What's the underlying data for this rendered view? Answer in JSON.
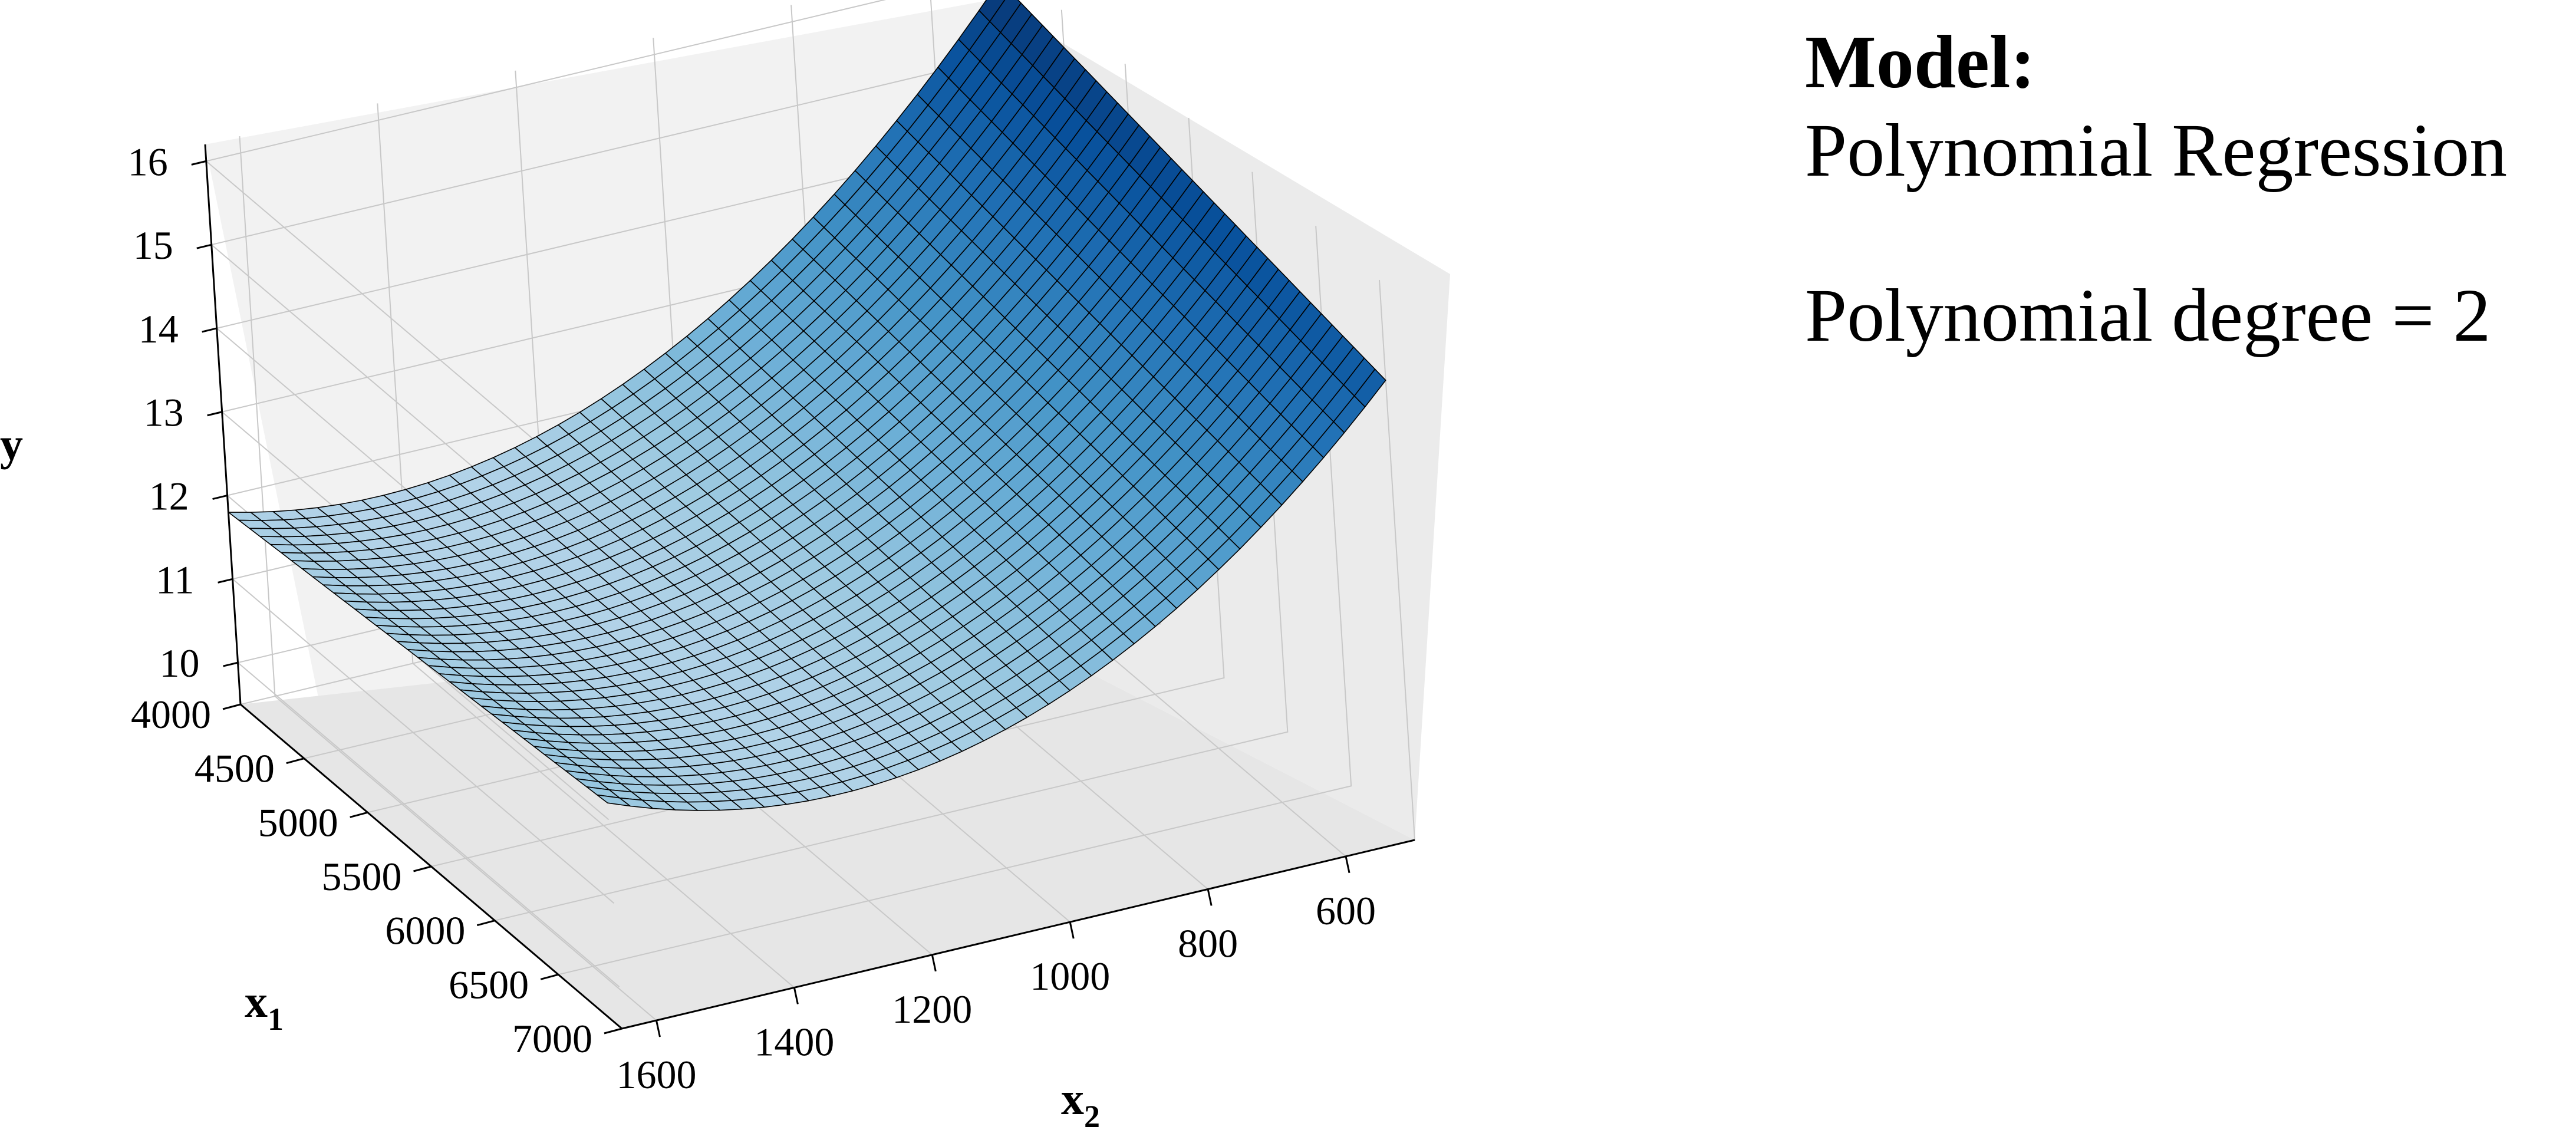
{
  "chart_data": {
    "type": "surface",
    "title": "",
    "xlabel": "x",
    "xlabel_subscript": "1",
    "x2label": "x",
    "x2label_subscript": "2",
    "ylabel": "y",
    "x1_range": [
      4000,
      7000
    ],
    "x2_range": [
      500,
      1650
    ],
    "y_range": [
      9.5,
      16.2
    ],
    "x1_ticks": [
      "4000",
      "4500",
      "5000",
      "5500",
      "6000",
      "6500",
      "7000"
    ],
    "x2_ticks": [
      "1600",
      "1400",
      "1200",
      "1000",
      "800",
      "600"
    ],
    "y_ticks": [
      "10",
      "11",
      "12",
      "13",
      "14",
      "15",
      "16"
    ],
    "grid": true,
    "colormap": "Blues",
    "surface_corners": [
      {
        "x1": 4000,
        "x2": 500,
        "y": 15.9
      },
      {
        "x1": 4000,
        "x2": 1650,
        "y": 11.8
      },
      {
        "x1": 7000,
        "x2": 1650,
        "y": 12.2
      },
      {
        "x1": 7000,
        "x2": 500,
        "y": 15.0
      }
    ]
  },
  "info": {
    "title": "Model:",
    "model": "Polynomial Regression",
    "degree": "Polynomial degree = 2"
  }
}
